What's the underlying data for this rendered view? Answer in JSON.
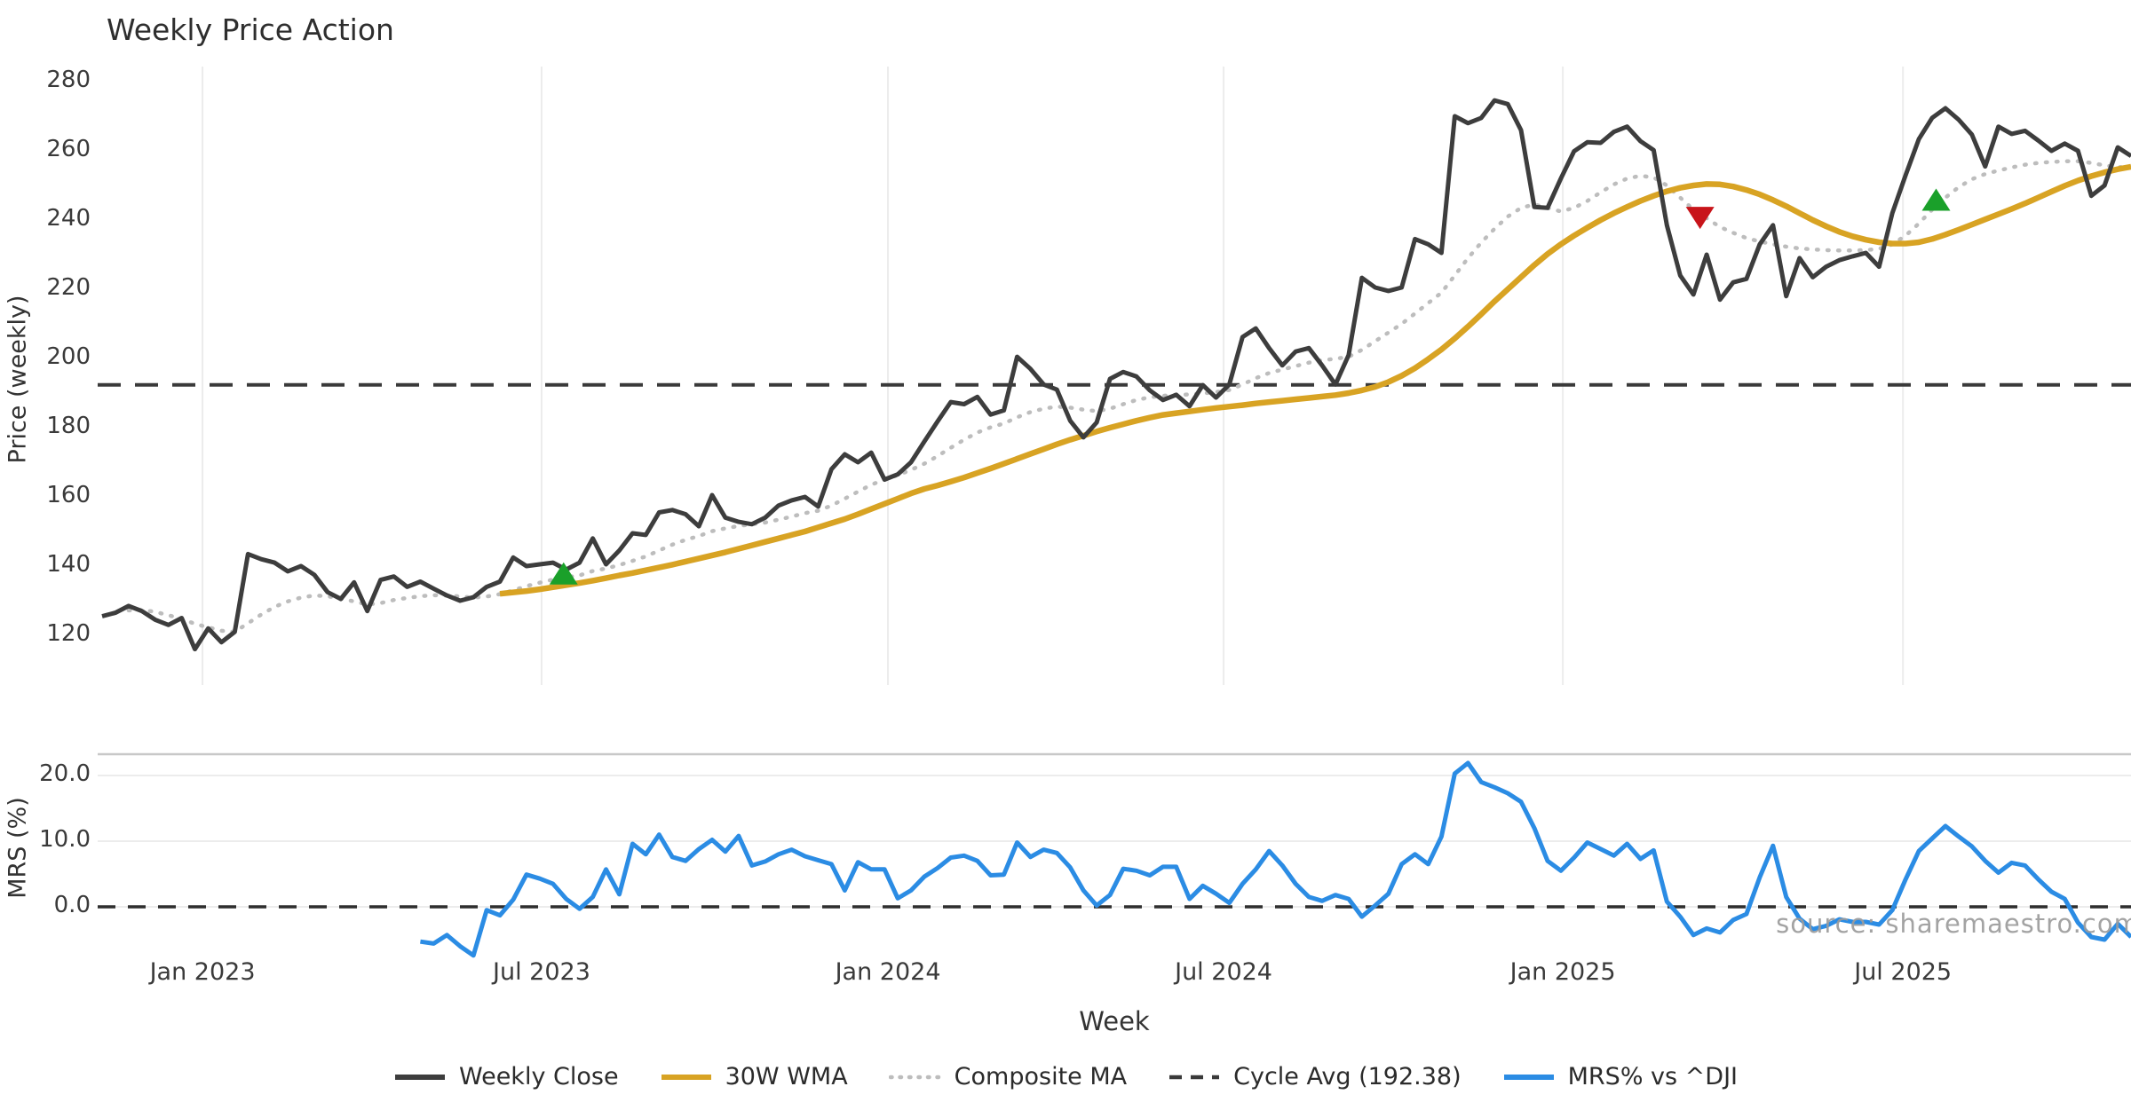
{
  "title": "Weekly Price Action",
  "watermark": "source: sharemaestro.com",
  "xlabel": "Week",
  "colors": {
    "close": "#3d3d3d",
    "wma": "#d8a323",
    "composite": "#bdbdbd",
    "cycle_dash": "#3a3a3a",
    "mrs_blue": "#2b8ce4",
    "marker_up_green": "#1aa02a",
    "marker_down_red": "#c8141a",
    "gridline": "#ececec",
    "panel_spine": "#c8c8c8"
  },
  "chart_data": {
    "type": "line",
    "x_unit": "week_index",
    "weeks_total": 154,
    "xticks": [
      {
        "label": "Jan 2023",
        "week": 7.57
      },
      {
        "label": "Jul 2023",
        "week": 33.14
      },
      {
        "label": "Jan 2024",
        "week": 59.26
      },
      {
        "label": "Jul 2024",
        "week": 84.57
      },
      {
        "label": "Jan 2025",
        "week": 110.15
      },
      {
        "label": "Jul 2025",
        "week": 135.8
      }
    ],
    "panels": [
      {
        "id": "price",
        "ylabel": "Price (weekly)",
        "yticks": [
          120,
          140,
          160,
          180,
          200,
          220,
          240,
          260,
          280
        ],
        "ylim": [
          106,
          284
        ],
        "gridlines": "vertical",
        "reference_line": {
          "label": "Cycle Avg",
          "value": 192.38,
          "style": "dashed"
        },
        "series": [
          {
            "name": "Weekly Close",
            "style": "solid",
            "color_key": "close",
            "start_week": 0,
            "values": [
              125.5,
              126.5,
              128.5,
              127,
              124.5,
              123,
              125,
              116,
              122,
              118,
              121,
              143.5,
              142,
              141,
              138.5,
              140,
              137.5,
              132.5,
              130.5,
              135.3,
              127,
              136,
              137,
              134,
              135.5,
              133.5,
              131.5,
              130,
              131,
              134,
              135.5,
              142.5,
              140,
              140.5,
              141,
              139,
              141,
              148,
              140.5,
              144.5,
              149.5,
              149,
              155.5,
              156.2,
              155,
              151.5,
              160.5,
              154,
              152.8,
              152.1,
              154,
              157.5,
              159,
              160,
              157.2,
              168,
              172.3,
              170,
              172.8,
              165,
              166.5,
              170,
              176,
              181.8,
              187.4,
              186.8,
              188.9,
              183.8,
              185,
              200.5,
              197,
              192.5,
              191,
              182,
              177.2,
              181.5,
              194.1,
              196.1,
              194.8,
              190.8,
              188,
              189.5,
              186.2,
              192.3,
              188.7,
              192.5,
              206.2,
              208.7,
              203,
              198,
              202,
              203,
              198,
              192.5,
              201,
              223.3,
              220.5,
              219.5,
              220.5,
              234.5,
              233,
              230.5,
              270,
              268,
              269.5,
              274.6,
              273.5,
              266,
              243.8,
              243.5,
              252,
              259.9,
              262.5,
              262.3,
              265.5,
              267,
              262.8,
              260.2,
              238.5,
              224,
              218.5,
              230,
              217,
              222,
              223,
              233,
              238.5,
              218,
              229,
              223.5,
              226.5,
              228.4,
              229.5,
              230.5,
              226.5,
              242,
              253,
              263.4,
              269.5,
              272.3,
              269,
              264.7,
              255.5,
              267,
              264.9,
              265.8,
              263,
              260,
              262.1,
              260,
              247,
              250,
              261,
              258.5
            ]
          },
          {
            "name": "30W WMA",
            "style": "solid",
            "color_key": "wma",
            "start_week": 30,
            "values": [
              132,
              132.4,
              132.8,
              133.3,
              133.9,
              134.5,
              135.1,
              135.8,
              136.5,
              137.3,
              138,
              138.8,
              139.6,
              140.4,
              141.3,
              142.2,
              143.1,
              144,
              145,
              146,
              147,
              148,
              149,
              150,
              151.2,
              152.4,
              153.6,
              155,
              156.5,
              158,
              159.5,
              161,
              162.3,
              163.3,
              164.4,
              165.6,
              166.9,
              168.2,
              169.6,
              171,
              172.4,
              173.8,
              175.2,
              176.5,
              177.7,
              178.9,
              180,
              181,
              182,
              182.9,
              183.7,
              184.2,
              184.7,
              185.2,
              185.7,
              186.1,
              186.5,
              187,
              187.4,
              187.8,
              188.2,
              188.6,
              189,
              189.4,
              190,
              190.8,
              191.8,
              193.2,
              195,
              197.2,
              199.8,
              202.6,
              205.8,
              209.2,
              212.8,
              216.5,
              220,
              223.5,
              227,
              230.2,
              233,
              235.5,
              237.8,
              240,
              242,
              243.8,
              245.5,
              247,
              248.3,
              249.3,
              250,
              250.4,
              250.3,
              249.7,
              248.7,
              247.4,
              245.8,
              244,
              242,
              240,
              238.2,
              236.6,
              235.3,
              234.3,
              233.6,
              233.2,
              233.2,
              233.6,
              234.5,
              235.8,
              237.2,
              238.7,
              240.2,
              241.7,
              243.2,
              244.8,
              246.5,
              248.2,
              249.9,
              251.4,
              252.7,
              253.8,
              254.7,
              255.4
            ]
          },
          {
            "name": "Composite MA",
            "style": "dotted",
            "color_key": "composite",
            "start_week": 2,
            "values": [
              127.2,
              127.3,
              126.8,
              125.8,
              124.8,
              123.3,
              122.3,
              121.3,
              121,
              123.5,
              126,
              128.2,
              129.8,
              130.9,
              131.5,
              131.3,
              130.6,
              129.8,
              128.9,
              129.3,
              130.2,
              130.8,
              131.3,
              131.6,
              131.5,
              131.2,
              130.9,
              131.2,
              131.9,
              133,
              134.2,
              135.2,
              136.1,
              136.8,
              137.3,
              138.6,
              139.3,
              140.3,
              141.5,
              142.8,
              144.5,
              146.2,
              147.6,
              148.7,
              150.1,
              150.9,
              151.6,
              152.1,
              152.6,
              153.4,
              154.3,
              155.3,
              156,
              157.5,
              159.5,
              161.5,
              163.5,
              165,
              166.3,
              167.8,
              169.6,
              171.8,
              174.2,
              176.5,
              178.6,
              180.1,
              181.2,
              183,
              184.5,
              185.5,
              186.1,
              185.8,
              185.2,
              184.8,
              185.5,
              186.8,
              188,
              188.8,
              189.2,
              189.5,
              189.6,
              189.9,
              190.3,
              190.9,
              192.5,
              194.3,
              195.8,
              196.8,
              197.8,
              198.8,
              199.5,
              199.9,
              200.5,
              202.5,
              205,
              207.5,
              210,
              213,
              216,
              219,
              224,
              229,
              233.5,
              237.5,
              241,
              243.5,
              244.5,
              243.5,
              242.5,
              243.5,
              245.5,
              248,
              250.3,
              252,
              252.8,
              252.3,
              250,
              246.5,
              243,
              240.5,
              238,
              236.3,
              234.8,
              233.8,
              233,
              232.3,
              231.8,
              231.5,
              231.3,
              231.2,
              231.2,
              231.3,
              231.7,
              233,
              235.5,
              239,
              243,
              246.5,
              249.5,
              251.8,
              253.3,
              254.3,
              255.2,
              256,
              256.5,
              256.8,
              257,
              257,
              256.5,
              255.8,
              255.3,
              255.2
            ]
          }
        ],
        "markers": [
          {
            "shape": "triangle-up",
            "week": 34.8,
            "price": 137.5,
            "color_key": "marker_up_green"
          },
          {
            "shape": "triangle-down",
            "week": 120.5,
            "price": 241,
            "color_key": "marker_down_red"
          },
          {
            "shape": "triangle-up",
            "week": 138.3,
            "price": 245.5,
            "color_key": "marker_up_green"
          }
        ]
      },
      {
        "id": "mrs",
        "ylabel": "MRS (%)",
        "yticks": [
          0,
          10,
          20
        ],
        "ytick_labels": [
          "0.0",
          "10.0",
          "20.0"
        ],
        "ylim": [
          -7.6,
          23.2
        ],
        "gridlines": "horizontal",
        "reference_line": {
          "value": 0,
          "style": "dashed"
        },
        "series": [
          {
            "name": "MRS% vs ^DJI",
            "style": "solid",
            "color_key": "mrs_blue",
            "start_week": 24,
            "values": [
              -5.3,
              -5.6,
              -4.3,
              -6.0,
              -7.4,
              -0.5,
              -1.3,
              1.1,
              4.9,
              4.3,
              3.5,
              1.2,
              -0.3,
              1.5,
              5.7,
              1.9,
              9.6,
              8.0,
              11.0,
              7.6,
              7.0,
              8.8,
              10.2,
              8.4,
              10.8,
              6.3,
              6.9,
              8.0,
              8.7,
              7.7,
              7.1,
              6.5,
              2.5,
              6.8,
              5.7,
              5.7,
              1.3,
              2.5,
              4.6,
              5.9,
              7.5,
              7.8,
              7.0,
              4.8,
              4.9,
              9.8,
              7.6,
              8.7,
              8.2,
              6.0,
              2.5,
              0.2,
              1.8,
              5.8,
              5.5,
              4.8,
              6.1,
              6.1,
              1.2,
              3.2,
              2.0,
              0.6,
              3.5,
              5.7,
              8.5,
              6.3,
              3.5,
              1.5,
              0.9,
              1.8,
              1.2,
              -1.5,
              0.2,
              2.0,
              6.5,
              8.0,
              6.5,
              10.7,
              20.3,
              21.9,
              19.0,
              18.2,
              17.3,
              16.0,
              12.0,
              7.0,
              5.5,
              7.5,
              9.8,
              8.8,
              7.8,
              9.6,
              7.3,
              8.6,
              0.8,
              -1.5,
              -4.3,
              -3.3,
              -3.9,
              -2.0,
              -1.1,
              4.5,
              9.3,
              1.5,
              -1.8,
              -3.4,
              -2.9,
              -1.9,
              -2.3,
              -2.3,
              -2.7,
              -0.5,
              4.2,
              8.5,
              10.4,
              12.3,
              10.7,
              9.2,
              7.0,
              5.2,
              6.7,
              6.3,
              4.2,
              2.3,
              1.2,
              -2.4,
              -4.6,
              -5.0,
              -2.6,
              -4.6
            ]
          }
        ]
      }
    ],
    "legend": [
      {
        "label": "Weekly Close",
        "style": "solid",
        "color_key": "close"
      },
      {
        "label": "30W WMA",
        "style": "solid",
        "color_key": "wma"
      },
      {
        "label": "Composite MA",
        "style": "dotted",
        "color_key": "composite"
      },
      {
        "label": "Cycle Avg (192.38)",
        "style": "dashed",
        "color_key": "cycle_dash"
      },
      {
        "label": "MRS% vs ^DJI",
        "style": "solid",
        "color_key": "mrs_blue"
      }
    ]
  }
}
